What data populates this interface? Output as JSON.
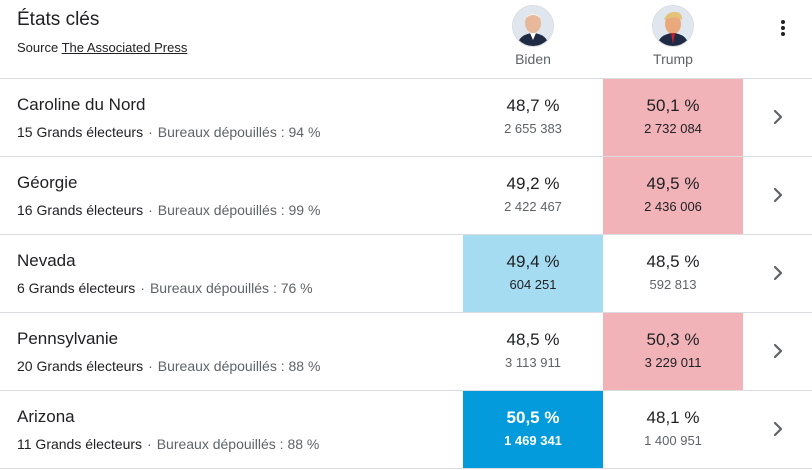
{
  "header": {
    "title": "États clés",
    "source_prefix": "Source",
    "source_link": "The Associated Press",
    "candidates": [
      {
        "name": "Biden",
        "avatar_icon": "biden-avatar-icon"
      },
      {
        "name": "Trump",
        "avatar_icon": "trump-avatar-icon"
      }
    ],
    "menu_icon": "more-vert-icon"
  },
  "colors": {
    "trump_lead": "#f2b3b8",
    "biden_lead_light": "#a6dcf2",
    "biden_lead_strong": "#039bdb",
    "divider": "#dadce0"
  },
  "rows": [
    {
      "state": "Caroline du Nord",
      "electors": "15 Grands électeurs",
      "counted": "Bureaux dépouillés : 94 %",
      "biden": {
        "pct": "48,7 %",
        "votes": "2 655 383"
      },
      "trump": {
        "pct": "50,1 %",
        "votes": "2 732 084"
      },
      "leader": "trump",
      "leader_style": "light"
    },
    {
      "state": "Géorgie",
      "electors": "16 Grands électeurs",
      "counted": "Bureaux dépouillés : 99 %",
      "biden": {
        "pct": "49,2 %",
        "votes": "2 422 467"
      },
      "trump": {
        "pct": "49,5 %",
        "votes": "2 436 006"
      },
      "leader": "trump",
      "leader_style": "light"
    },
    {
      "state": "Nevada",
      "electors": "6 Grands électeurs",
      "counted": "Bureaux dépouillés : 76 %",
      "biden": {
        "pct": "49,4 %",
        "votes": "604 251"
      },
      "trump": {
        "pct": "48,5 %",
        "votes": "592 813"
      },
      "leader": "biden",
      "leader_style": "light"
    },
    {
      "state": "Pennsylvanie",
      "electors": "20 Grands électeurs",
      "counted": "Bureaux dépouillés : 88 %",
      "biden": {
        "pct": "48,5 %",
        "votes": "3 113 911"
      },
      "trump": {
        "pct": "50,3 %",
        "votes": "3 229 011"
      },
      "leader": "trump",
      "leader_style": "light"
    },
    {
      "state": "Arizona",
      "electors": "11 Grands électeurs",
      "counted": "Bureaux dépouillés : 88 %",
      "biden": {
        "pct": "50,5 %",
        "votes": "1 469 341"
      },
      "trump": {
        "pct": "48,1 %",
        "votes": "1 400 951"
      },
      "leader": "biden",
      "leader_style": "strong"
    }
  ]
}
